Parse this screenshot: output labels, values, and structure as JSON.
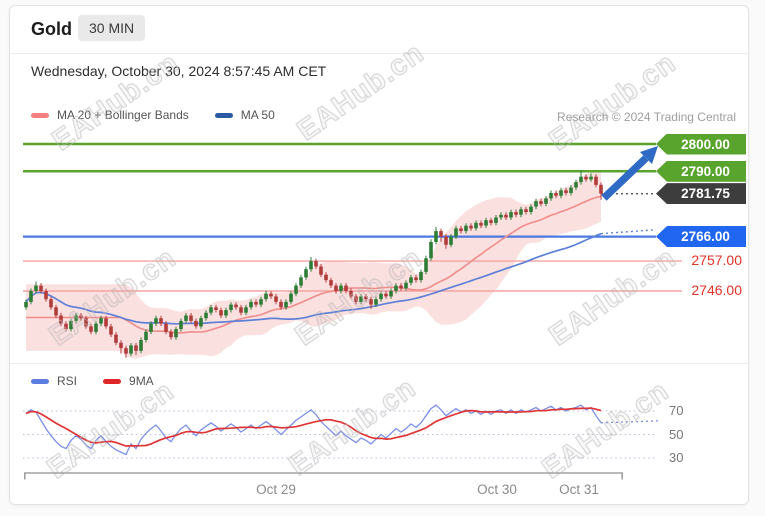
{
  "header": {
    "title": "Gold",
    "timeframe": "30 MIN"
  },
  "timestamp": "Wednesday, October 30, 2024 8:57:45 AM CET",
  "attribution": "Research © 2024 Trading Central",
  "watermark": "EAHub.cn",
  "main_legend": [
    {
      "label": "MA 20 + Bollinger Bands",
      "color": "#f58080"
    },
    {
      "label": "MA 50",
      "color": "#2b5aa2"
    }
  ],
  "rsi_legend": [
    {
      "label": "RSI",
      "color": "#5b7ce0"
    },
    {
      "label": "9MA",
      "color": "#e02828"
    }
  ],
  "price_levels": [
    {
      "label": "2800.00",
      "price": 2800,
      "style": "tag-green"
    },
    {
      "label": "2790.00",
      "price": 2790,
      "style": "tag-green"
    },
    {
      "label": "2781.75",
      "price": 2781.75,
      "style": "tag-dark"
    },
    {
      "label": "2766.00",
      "price": 2766,
      "style": "tag-blue"
    },
    {
      "label": "2757.00",
      "price": 2757,
      "style": "text-red"
    },
    {
      "label": "2746.00",
      "price": 2746,
      "style": "text-red"
    }
  ],
  "rsi_ticks": [
    70,
    50,
    30
  ],
  "x_axis": [
    "Oct 29",
    "Oct 30",
    "Oct 31"
  ],
  "colors": {
    "candle_up": "#2e7d36",
    "candle_down": "#b13c3c",
    "band_fill": "#f5b6b6",
    "ma20": "#f08c8c",
    "ma50": "#5d80d8",
    "level_green": "#58a42c",
    "tag_blue": "#2166f0",
    "tag_dark": "#3d3d3d",
    "level_blue_line": "#4b79e0",
    "level_red_line": "#f5a2a2",
    "level_red_text": "#e23227",
    "rsi": "#7b8fe8",
    "rsi_ma": "#e03535",
    "grid_dotted": "#b6bcd6",
    "arrow": "#2f6bc5",
    "axis": "#a0a0a0",
    "dotted_dark": "#555555"
  },
  "chart_data": {
    "type": "candlestick",
    "symbol": "Gold",
    "interval": "30 MIN",
    "title": "Gold 30 MIN with MA 20 + Bollinger Bands, MA 50, RSI and 9MA",
    "x_labels": [
      "Oct 29",
      "Oct 30",
      "Oct 31"
    ],
    "price_ylim": [
      2720,
      2802
    ],
    "levels": {
      "resistance": [
        2800,
        2790
      ],
      "last_price": 2781.75,
      "support": [
        2766
      ],
      "minor_lines": [
        2757,
        2746
      ]
    },
    "indicators": [
      "MA 20 + Bollinger Bands",
      "MA 50",
      "RSI",
      "9MA"
    ],
    "candles_ohlc": [
      [
        2740,
        2742.9,
        2739.1,
        2742
      ],
      [
        2742,
        2746.9,
        2741.1,
        2746
      ],
      [
        2746,
        2749.5,
        2745.1,
        2748
      ],
      [
        2748,
        2748.9,
        2745.1,
        2746
      ],
      [
        2746,
        2746.9,
        2742.1,
        2743
      ],
      [
        2743,
        2743.9,
        2739.1,
        2740
      ],
      [
        2740,
        2740.9,
        2736.1,
        2737
      ],
      [
        2737,
        2737.9,
        2733.1,
        2734
      ],
      [
        2734,
        2734.9,
        2731.1,
        2732
      ],
      [
        2732,
        2735.9,
        2731.1,
        2735
      ],
      [
        2735,
        2737.9,
        2734.1,
        2737
      ],
      [
        2737,
        2737.9,
        2735.1,
        2736
      ],
      [
        2736,
        2736.9,
        2732.1,
        2733
      ],
      [
        2733,
        2733.9,
        2730.1,
        2731
      ],
      [
        2731,
        2734.9,
        2730.1,
        2734
      ],
      [
        2734,
        2736.9,
        2733.1,
        2736
      ],
      [
        2736,
        2736.9,
        2732.1,
        2733
      ],
      [
        2733,
        2733.9,
        2729.1,
        2730
      ],
      [
        2730,
        2730.9,
        2726.1,
        2727
      ],
      [
        2727,
        2727.9,
        2723,
        2725
      ],
      [
        2725,
        2725.9,
        2721.5,
        2723
      ],
      [
        2723,
        2726.9,
        2722.1,
        2726
      ],
      [
        2726,
        2726.9,
        2722.5,
        2724
      ],
      [
        2724,
        2728.9,
        2723.1,
        2728
      ],
      [
        2728,
        2731.9,
        2727.1,
        2731
      ],
      [
        2731,
        2734.9,
        2730.1,
        2734
      ],
      [
        2734,
        2736.9,
        2733.1,
        2736
      ],
      [
        2736,
        2736.9,
        2733.1,
        2734
      ],
      [
        2734,
        2734.9,
        2730.1,
        2731
      ],
      [
        2731,
        2731.9,
        2728.1,
        2729
      ],
      [
        2729,
        2732.9,
        2728.1,
        2732
      ],
      [
        2732,
        2735.9,
        2731.1,
        2735
      ],
      [
        2735,
        2737.9,
        2734.1,
        2737
      ],
      [
        2737,
        2737.9,
        2734.1,
        2735
      ],
      [
        2735,
        2735.9,
        2732.1,
        2733
      ],
      [
        2733,
        2736.9,
        2732.1,
        2736
      ],
      [
        2736,
        2738.9,
        2735.1,
        2738
      ],
      [
        2738,
        2740.9,
        2737.1,
        2740
      ],
      [
        2740,
        2740.9,
        2738.1,
        2739
      ],
      [
        2739,
        2739.9,
        2736.1,
        2737
      ],
      [
        2737,
        2739.9,
        2736.1,
        2739
      ],
      [
        2739,
        2741.9,
        2738.1,
        2741
      ],
      [
        2741,
        2741.9,
        2739.1,
        2740
      ],
      [
        2740,
        2740.9,
        2737.1,
        2738
      ],
      [
        2738,
        2740.9,
        2737.1,
        2740
      ],
      [
        2740,
        2742.9,
        2739.1,
        2742
      ],
      [
        2742,
        2742.9,
        2740.1,
        2741
      ],
      [
        2741,
        2743.9,
        2740.1,
        2743
      ],
      [
        2743,
        2746.2,
        2742.1,
        2745
      ],
      [
        2745,
        2745.9,
        2743.1,
        2744
      ],
      [
        2744,
        2744.9,
        2741.1,
        2742
      ],
      [
        2742,
        2742.9,
        2739.1,
        2740
      ],
      [
        2740,
        2742.9,
        2739.1,
        2742
      ],
      [
        2742,
        2745.9,
        2741.1,
        2745
      ],
      [
        2745,
        2748.9,
        2744.1,
        2748
      ],
      [
        2748,
        2751.9,
        2747.1,
        2751
      ],
      [
        2751,
        2754.9,
        2750.1,
        2754
      ],
      [
        2754,
        2758.5,
        2753.1,
        2757
      ],
      [
        2757,
        2757.9,
        2754.1,
        2755
      ],
      [
        2755,
        2755.9,
        2751.1,
        2752
      ],
      [
        2752,
        2752.9,
        2749.1,
        2750
      ],
      [
        2750,
        2750.9,
        2747.1,
        2748
      ],
      [
        2748,
        2748.9,
        2745.1,
        2746
      ],
      [
        2746,
        2748.9,
        2745.1,
        2748
      ],
      [
        2748,
        2748.9,
        2745.1,
        2746
      ],
      [
        2746,
        2746.9,
        2743.1,
        2744
      ],
      [
        2744,
        2744.9,
        2741.1,
        2742
      ],
      [
        2742,
        2744.9,
        2741.1,
        2744
      ],
      [
        2744,
        2744.9,
        2742.1,
        2743
      ],
      [
        2743,
        2743.9,
        2739.5,
        2741
      ],
      [
        2741,
        2743.9,
        2740.1,
        2743
      ],
      [
        2743,
        2745.9,
        2742.1,
        2745
      ],
      [
        2745,
        2745.9,
        2743.1,
        2744
      ],
      [
        2744,
        2746.9,
        2743.1,
        2746
      ],
      [
        2746,
        2748.9,
        2745.1,
        2748
      ],
      [
        2748,
        2748.9,
        2746.1,
        2747
      ],
      [
        2747,
        2749.9,
        2746.1,
        2749
      ],
      [
        2749,
        2751.9,
        2748.1,
        2751
      ],
      [
        2751,
        2751.9,
        2749.1,
        2750
      ],
      [
        2750,
        2753.9,
        2749.1,
        2753
      ],
      [
        2753,
        2759,
        2752.1,
        2758
      ],
      [
        2758,
        2765,
        2757.1,
        2764
      ],
      [
        2764,
        2769.5,
        2763.1,
        2768
      ],
      [
        2768,
        2768.9,
        2764.1,
        2766
      ],
      [
        2766,
        2766.9,
        2761.5,
        2763
      ],
      [
        2763,
        2766.9,
        2762.1,
        2766
      ],
      [
        2766,
        2769.9,
        2765.1,
        2769
      ],
      [
        2769,
        2769.9,
        2767.1,
        2768
      ],
      [
        2768,
        2770.9,
        2767.1,
        2770
      ],
      [
        2770,
        2770.9,
        2768.1,
        2769
      ],
      [
        2769,
        2771.9,
        2768.1,
        2771
      ],
      [
        2771,
        2771.9,
        2769.1,
        2770
      ],
      [
        2770,
        2772.9,
        2769.1,
        2772
      ],
      [
        2772,
        2772.9,
        2770.1,
        2771
      ],
      [
        2771,
        2773.9,
        2770.1,
        2773
      ],
      [
        2773,
        2774.9,
        2772.1,
        2774
      ],
      [
        2774,
        2774.9,
        2772.1,
        2773
      ],
      [
        2773,
        2775.9,
        2772.1,
        2775
      ],
      [
        2775,
        2775.9,
        2773.1,
        2774
      ],
      [
        2774,
        2776.9,
        2773.1,
        2776
      ],
      [
        2776,
        2776.9,
        2774.1,
        2775
      ],
      [
        2775,
        2777.9,
        2774.1,
        2777
      ],
      [
        2777,
        2779.9,
        2776.1,
        2779
      ],
      [
        2779,
        2779.9,
        2777.1,
        2778
      ],
      [
        2778,
        2780.9,
        2777.1,
        2780
      ],
      [
        2780,
        2782.9,
        2779.1,
        2782
      ],
      [
        2782,
        2782.9,
        2780.1,
        2781
      ],
      [
        2781,
        2783.9,
        2780.1,
        2783
      ],
      [
        2783,
        2783.9,
        2781.1,
        2782
      ],
      [
        2782,
        2784.9,
        2781.1,
        2784
      ],
      [
        2784,
        2786.9,
        2783.1,
        2786
      ],
      [
        2786,
        2790.3,
        2785.1,
        2788
      ],
      [
        2788,
        2788.9,
        2786.1,
        2787
      ],
      [
        2787,
        2789.2,
        2786.1,
        2788
      ],
      [
        2788,
        2788.9,
        2784.1,
        2785
      ],
      [
        2785,
        2785.9,
        2779.5,
        2781.75
      ]
    ],
    "rsi": [
      68,
      71,
      69,
      62,
      55,
      49,
      44,
      40,
      38,
      45,
      49,
      46,
      41,
      38,
      45,
      49,
      44,
      40,
      37,
      35,
      33,
      42,
      38,
      46,
      51,
      55,
      58,
      53,
      47,
      44,
      50,
      55,
      58,
      53,
      49,
      54,
      57,
      60,
      57,
      53,
      56,
      59,
      56,
      52,
      55,
      58,
      55,
      58,
      61,
      58,
      54,
      50,
      54,
      58,
      62,
      65,
      68,
      71,
      67,
      61,
      57,
      53,
      49,
      53,
      49,
      46,
      43,
      47,
      45,
      42,
      46,
      50,
      47,
      51,
      55,
      52,
      55,
      59,
      56,
      60,
      66,
      72,
      75,
      71,
      66,
      69,
      72,
      69,
      71,
      68,
      70,
      67,
      70,
      67,
      70,
      71,
      68,
      71,
      68,
      71,
      69,
      71,
      73,
      70,
      72,
      74,
      71,
      73,
      70,
      72,
      73,
      75,
      71,
      73,
      66,
      60
    ],
    "rsi_ticks": [
      70,
      50,
      30
    ]
  }
}
